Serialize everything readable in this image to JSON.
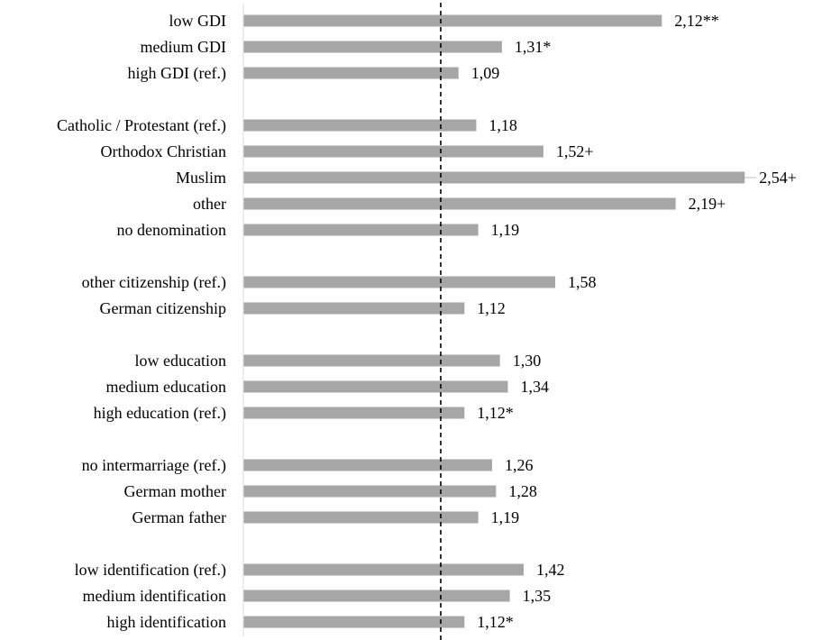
{
  "chart_data": {
    "type": "bar",
    "orientation": "horizontal",
    "xlim": [
      0,
      2.6
    ],
    "reference_line": 1.0,
    "reference_line_style": "dashed",
    "bar_color": "#a6a6a6",
    "grid": false,
    "legend": "none",
    "groups": [
      {
        "items": [
          {
            "label": "low GDI",
            "value": 2.12,
            "value_label": "2,12**"
          },
          {
            "label": "medium GDI",
            "value": 1.31,
            "value_label": "1,31*"
          },
          {
            "label": "high GDI (ref.)",
            "value": 1.09,
            "value_label": "1,09"
          }
        ]
      },
      {
        "items": [
          {
            "label": "Catholic / Protestant (ref.)",
            "value": 1.18,
            "value_label": "1,18"
          },
          {
            "label": "Orthodox Christian",
            "value": 1.52,
            "value_label": "1,52+"
          },
          {
            "label": "Muslim",
            "value": 2.54,
            "value_label": "2,54+"
          },
          {
            "label": "other",
            "value": 2.19,
            "value_label": "2,19+"
          },
          {
            "label": "no denomination",
            "value": 1.19,
            "value_label": "1,19"
          }
        ]
      },
      {
        "items": [
          {
            "label": "other citizenship (ref.)",
            "value": 1.58,
            "value_label": "1,58"
          },
          {
            "label": "German citizenship",
            "value": 1.12,
            "value_label": "1,12"
          }
        ]
      },
      {
        "items": [
          {
            "label": "low education",
            "value": 1.3,
            "value_label": "1,30"
          },
          {
            "label": "medium education",
            "value": 1.34,
            "value_label": "1,34"
          },
          {
            "label": "high education (ref.)",
            "value": 1.12,
            "value_label": "1,12*"
          }
        ]
      },
      {
        "items": [
          {
            "label": "no intermarriage (ref.)",
            "value": 1.26,
            "value_label": "1,26"
          },
          {
            "label": "German mother",
            "value": 1.28,
            "value_label": "1,28"
          },
          {
            "label": "German father",
            "value": 1.19,
            "value_label": "1,19"
          }
        ]
      },
      {
        "items": [
          {
            "label": "low identification (ref.)",
            "value": 1.42,
            "value_label": "1,42"
          },
          {
            "label": "medium identification",
            "value": 1.35,
            "value_label": "1,35"
          },
          {
            "label": "high identification",
            "value": 1.12,
            "value_label": "1,12*"
          }
        ]
      }
    ]
  }
}
